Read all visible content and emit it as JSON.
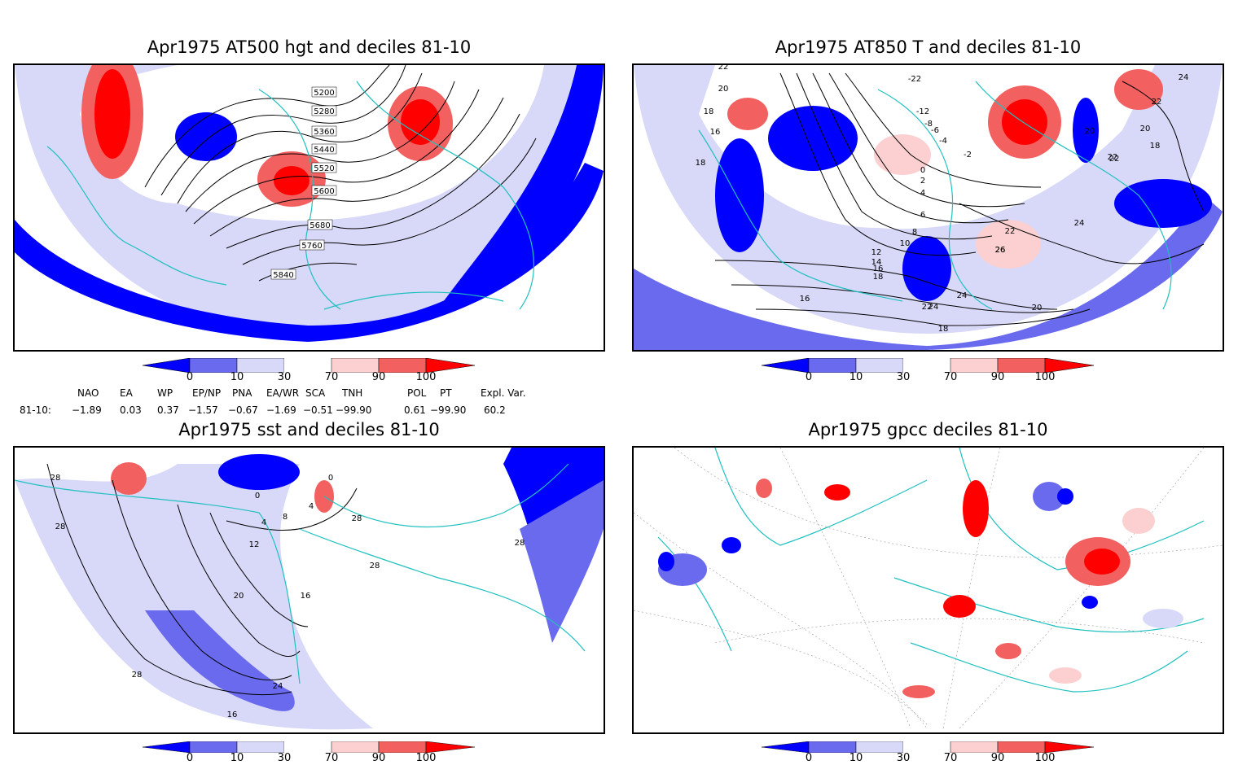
{
  "panels": {
    "top_left": {
      "title": "Apr1975 AT500 hgt and deciles 81-10",
      "contour_labels": [
        "5200",
        "5280",
        "5360",
        "5440",
        "5520",
        "5600",
        "5680",
        "5760",
        "5840"
      ]
    },
    "top_right": {
      "title": "Apr1975 AT850 T and deciles 81-10",
      "contour_labels": [
        "22",
        "20",
        "18",
        "16",
        "18",
        "-22",
        "-12",
        "-8",
        "-6",
        "-4",
        "-2",
        "0",
        "2",
        "4",
        "6",
        "8",
        "10",
        "12",
        "14",
        "16",
        "18",
        "22",
        "24",
        "26",
        "22",
        "24",
        "22",
        "20",
        "22",
        "18",
        "16",
        "18",
        "20",
        "24",
        "26",
        "24",
        "22",
        "20"
      ]
    },
    "bottom_left": {
      "title": "Apr1975 sst and deciles 81-10",
      "contour_labels": [
        "28",
        "28",
        "0",
        "4",
        "8",
        "12",
        "4",
        "0",
        "16",
        "20",
        "24",
        "28",
        "28",
        "16",
        "28",
        "28"
      ]
    },
    "bottom_right": {
      "title": "Apr1975 gpcc deciles 81-10",
      "contour_labels": []
    }
  },
  "colorbar": {
    "ticks": [
      "0",
      "10",
      "30",
      "70",
      "90",
      "100"
    ],
    "colors": [
      "#0000ff",
      "#6a6aee",
      "#d8d8f8",
      "#ffffff",
      "#fcd0d0",
      "#f26060",
      "#ff0000"
    ]
  },
  "indices": {
    "names": [
      "NAO",
      "EA",
      "WP",
      "EP/NP",
      "PNA",
      "EA/WR",
      "SCA",
      "TNH",
      "POL",
      "PT",
      "Expl. Var."
    ],
    "row_label": "81-10:",
    "values": [
      "−1.89",
      "0.03",
      "0.37",
      "−1.57",
      "−0.67",
      "−1.69",
      "−0.51",
      "−99.90",
      "0.61",
      "−99.90",
      "60.2"
    ]
  },
  "colors": {
    "coast": "#20c0c0",
    "contour": "#000000",
    "grid": "#999999"
  }
}
